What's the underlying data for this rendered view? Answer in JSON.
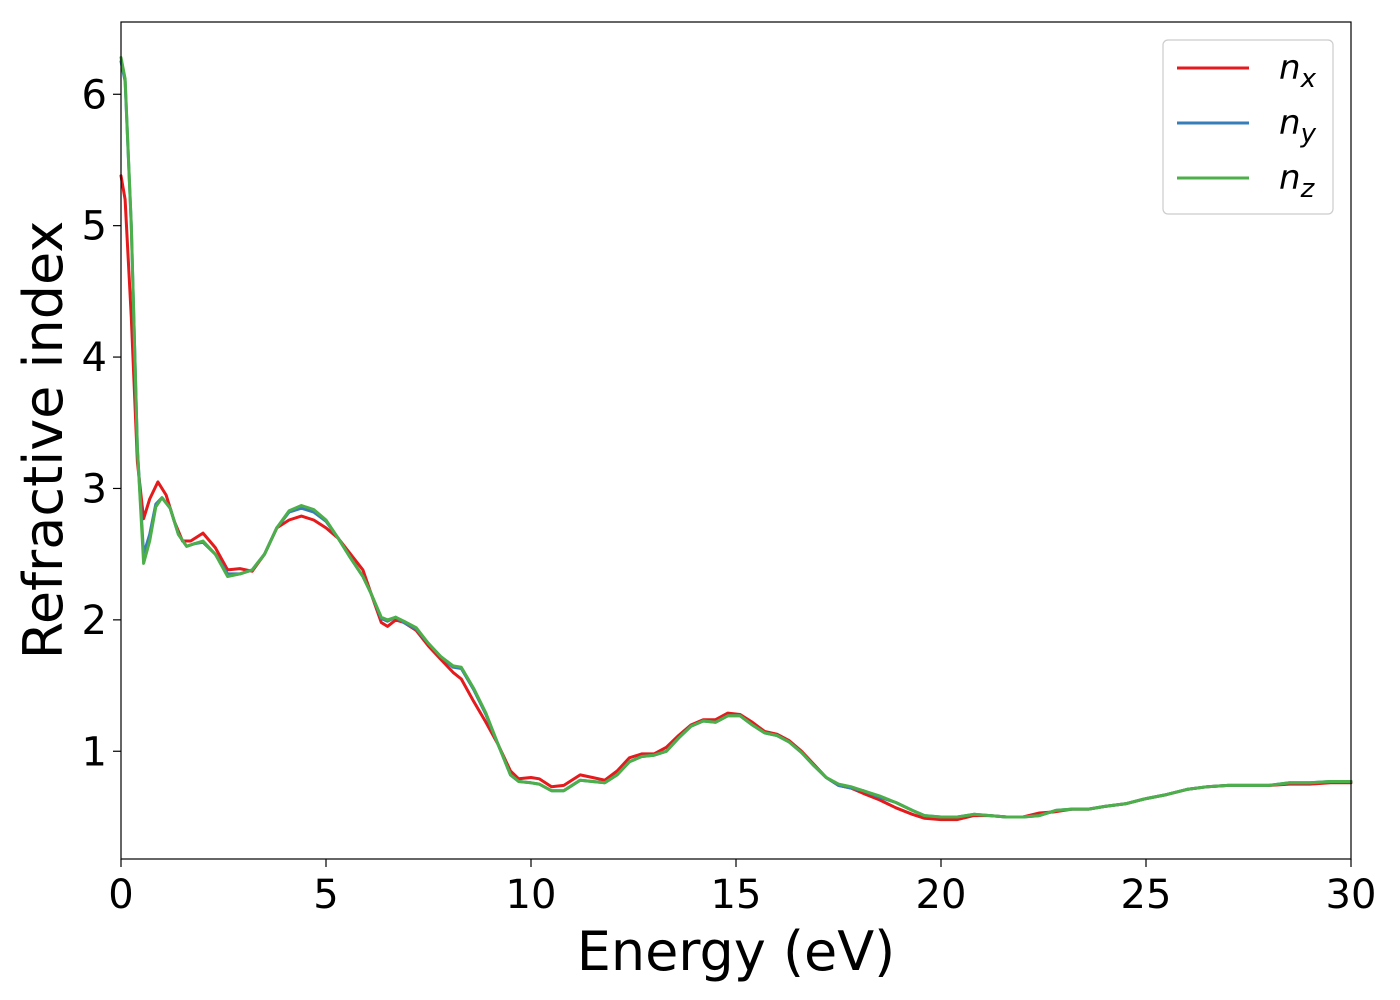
{
  "chart_data": {
    "type": "line",
    "title": "",
    "xlabel": "Energy (eV)",
    "ylabel": "Refractive index",
    "xlim": [
      0,
      30
    ],
    "ylim": [
      0.18,
      6.55
    ],
    "xticks": [
      0,
      5,
      10,
      15,
      20,
      25,
      30
    ],
    "yticks": [
      1,
      2,
      3,
      4,
      5,
      6
    ],
    "grid": false,
    "legend": "top-right",
    "series": [
      {
        "name": "n",
        "subscript": "x",
        "color": "#e41a1c",
        "points": [
          [
            0,
            5.38
          ],
          [
            0.1,
            5.2
          ],
          [
            0.25,
            4.3
          ],
          [
            0.4,
            3.2
          ],
          [
            0.55,
            2.77
          ],
          [
            0.7,
            2.92
          ],
          [
            0.9,
            3.05
          ],
          [
            1.1,
            2.95
          ],
          [
            1.3,
            2.75
          ],
          [
            1.5,
            2.6
          ],
          [
            1.7,
            2.6
          ],
          [
            2.0,
            2.66
          ],
          [
            2.3,
            2.55
          ],
          [
            2.6,
            2.38
          ],
          [
            2.9,
            2.39
          ],
          [
            3.2,
            2.37
          ],
          [
            3.5,
            2.5
          ],
          [
            3.8,
            2.7
          ],
          [
            4.1,
            2.76
          ],
          [
            4.4,
            2.79
          ],
          [
            4.7,
            2.76
          ],
          [
            5.0,
            2.7
          ],
          [
            5.3,
            2.62
          ],
          [
            5.6,
            2.5
          ],
          [
            5.9,
            2.38
          ],
          [
            6.1,
            2.2
          ],
          [
            6.35,
            1.98
          ],
          [
            6.5,
            1.95
          ],
          [
            6.7,
            2.0
          ],
          [
            6.9,
            1.98
          ],
          [
            7.2,
            1.92
          ],
          [
            7.5,
            1.8
          ],
          [
            7.8,
            1.7
          ],
          [
            8.1,
            1.6
          ],
          [
            8.3,
            1.55
          ],
          [
            8.6,
            1.38
          ],
          [
            8.9,
            1.22
          ],
          [
            9.2,
            1.05
          ],
          [
            9.5,
            0.85
          ],
          [
            9.7,
            0.79
          ],
          [
            10.0,
            0.8
          ],
          [
            10.2,
            0.79
          ],
          [
            10.5,
            0.73
          ],
          [
            10.8,
            0.74
          ],
          [
            11.2,
            0.82
          ],
          [
            11.5,
            0.8
          ],
          [
            11.8,
            0.78
          ],
          [
            12.1,
            0.85
          ],
          [
            12.4,
            0.95
          ],
          [
            12.7,
            0.98
          ],
          [
            13.0,
            0.98
          ],
          [
            13.3,
            1.03
          ],
          [
            13.6,
            1.12
          ],
          [
            13.9,
            1.2
          ],
          [
            14.2,
            1.24
          ],
          [
            14.5,
            1.24
          ],
          [
            14.8,
            1.29
          ],
          [
            15.1,
            1.28
          ],
          [
            15.4,
            1.22
          ],
          [
            15.7,
            1.15
          ],
          [
            16.0,
            1.13
          ],
          [
            16.3,
            1.08
          ],
          [
            16.6,
            1.0
          ],
          [
            16.9,
            0.9
          ],
          [
            17.2,
            0.8
          ],
          [
            17.5,
            0.74
          ],
          [
            17.8,
            0.72
          ],
          [
            18.1,
            0.68
          ],
          [
            18.5,
            0.63
          ],
          [
            18.9,
            0.57
          ],
          [
            19.3,
            0.52
          ],
          [
            19.6,
            0.49
          ],
          [
            20.0,
            0.48
          ],
          [
            20.4,
            0.48
          ],
          [
            20.8,
            0.51
          ],
          [
            21.2,
            0.51
          ],
          [
            21.6,
            0.5
          ],
          [
            22.0,
            0.5
          ],
          [
            22.4,
            0.53
          ],
          [
            22.8,
            0.54
          ],
          [
            23.2,
            0.56
          ],
          [
            23.6,
            0.56
          ],
          [
            24.0,
            0.58
          ],
          [
            24.5,
            0.6
          ],
          [
            25.0,
            0.64
          ],
          [
            25.5,
            0.67
          ],
          [
            26.0,
            0.71
          ],
          [
            26.5,
            0.73
          ],
          [
            27.0,
            0.74
          ],
          [
            27.5,
            0.74
          ],
          [
            28.0,
            0.74
          ],
          [
            28.5,
            0.75
          ],
          [
            29.0,
            0.75
          ],
          [
            29.5,
            0.76
          ],
          [
            30.0,
            0.76
          ]
        ]
      },
      {
        "name": "n",
        "subscript": "y",
        "color": "#377eb8",
        "points": [
          [
            0,
            6.25
          ],
          [
            0.1,
            6.1
          ],
          [
            0.25,
            5.0
          ],
          [
            0.4,
            3.3
          ],
          [
            0.55,
            2.5
          ],
          [
            0.7,
            2.65
          ],
          [
            0.85,
            2.88
          ],
          [
            1.0,
            2.93
          ],
          [
            1.2,
            2.85
          ],
          [
            1.4,
            2.65
          ],
          [
            1.6,
            2.56
          ],
          [
            1.8,
            2.58
          ],
          [
            2.0,
            2.59
          ],
          [
            2.3,
            2.5
          ],
          [
            2.6,
            2.35
          ],
          [
            2.9,
            2.35
          ],
          [
            3.2,
            2.38
          ],
          [
            3.5,
            2.5
          ],
          [
            3.8,
            2.7
          ],
          [
            4.1,
            2.82
          ],
          [
            4.4,
            2.85
          ],
          [
            4.7,
            2.82
          ],
          [
            5.0,
            2.75
          ],
          [
            5.3,
            2.62
          ],
          [
            5.6,
            2.47
          ],
          [
            5.9,
            2.33
          ],
          [
            6.1,
            2.2
          ],
          [
            6.35,
            2.01
          ],
          [
            6.5,
            1.99
          ],
          [
            6.7,
            2.02
          ],
          [
            6.9,
            1.98
          ],
          [
            7.2,
            1.93
          ],
          [
            7.5,
            1.82
          ],
          [
            7.8,
            1.72
          ],
          [
            8.1,
            1.64
          ],
          [
            8.3,
            1.63
          ],
          [
            8.6,
            1.47
          ],
          [
            8.9,
            1.28
          ],
          [
            9.2,
            1.05
          ],
          [
            9.5,
            0.82
          ],
          [
            9.7,
            0.77
          ],
          [
            10.0,
            0.76
          ],
          [
            10.2,
            0.75
          ],
          [
            10.5,
            0.7
          ],
          [
            10.8,
            0.7
          ],
          [
            11.2,
            0.78
          ],
          [
            11.5,
            0.77
          ],
          [
            11.8,
            0.76
          ],
          [
            12.1,
            0.82
          ],
          [
            12.4,
            0.92
          ],
          [
            12.7,
            0.96
          ],
          [
            13.0,
            0.97
          ],
          [
            13.3,
            1.0
          ],
          [
            13.6,
            1.1
          ],
          [
            13.9,
            1.19
          ],
          [
            14.2,
            1.23
          ],
          [
            14.5,
            1.22
          ],
          [
            14.8,
            1.27
          ],
          [
            15.1,
            1.27
          ],
          [
            15.4,
            1.2
          ],
          [
            15.7,
            1.14
          ],
          [
            16.0,
            1.12
          ],
          [
            16.3,
            1.07
          ],
          [
            16.6,
            0.99
          ],
          [
            16.9,
            0.89
          ],
          [
            17.2,
            0.8
          ],
          [
            17.5,
            0.74
          ],
          [
            17.8,
            0.72
          ],
          [
            18.1,
            0.7
          ],
          [
            18.5,
            0.65
          ],
          [
            18.9,
            0.61
          ],
          [
            19.3,
            0.55
          ],
          [
            19.6,
            0.51
          ],
          [
            20.0,
            0.5
          ],
          [
            20.4,
            0.5
          ],
          [
            20.8,
            0.52
          ],
          [
            21.2,
            0.51
          ],
          [
            21.6,
            0.5
          ],
          [
            22.0,
            0.5
          ],
          [
            22.4,
            0.51
          ],
          [
            22.8,
            0.55
          ],
          [
            23.2,
            0.56
          ],
          [
            23.6,
            0.56
          ],
          [
            24.0,
            0.58
          ],
          [
            24.5,
            0.6
          ],
          [
            25.0,
            0.64
          ],
          [
            25.5,
            0.67
          ],
          [
            26.0,
            0.71
          ],
          [
            26.5,
            0.73
          ],
          [
            27.0,
            0.74
          ],
          [
            27.5,
            0.74
          ],
          [
            28.0,
            0.74
          ],
          [
            28.5,
            0.76
          ],
          [
            29.0,
            0.76
          ],
          [
            29.5,
            0.77
          ],
          [
            30.0,
            0.77
          ]
        ]
      },
      {
        "name": "n",
        "subscript": "z",
        "color": "#4daf4a",
        "points": [
          [
            0,
            6.28
          ],
          [
            0.1,
            6.12
          ],
          [
            0.25,
            5.0
          ],
          [
            0.4,
            3.3
          ],
          [
            0.55,
            2.43
          ],
          [
            0.7,
            2.6
          ],
          [
            0.85,
            2.86
          ],
          [
            1.0,
            2.93
          ],
          [
            1.2,
            2.85
          ],
          [
            1.4,
            2.65
          ],
          [
            1.6,
            2.56
          ],
          [
            1.8,
            2.58
          ],
          [
            2.0,
            2.6
          ],
          [
            2.3,
            2.5
          ],
          [
            2.6,
            2.33
          ],
          [
            2.9,
            2.35
          ],
          [
            3.2,
            2.38
          ],
          [
            3.5,
            2.5
          ],
          [
            3.8,
            2.7
          ],
          [
            4.1,
            2.83
          ],
          [
            4.4,
            2.87
          ],
          [
            4.7,
            2.84
          ],
          [
            5.0,
            2.76
          ],
          [
            5.3,
            2.62
          ],
          [
            5.6,
            2.47
          ],
          [
            5.9,
            2.33
          ],
          [
            6.1,
            2.2
          ],
          [
            6.35,
            2.02
          ],
          [
            6.5,
            2.0
          ],
          [
            6.7,
            2.02
          ],
          [
            6.9,
            1.99
          ],
          [
            7.2,
            1.94
          ],
          [
            7.5,
            1.82
          ],
          [
            7.8,
            1.72
          ],
          [
            8.1,
            1.65
          ],
          [
            8.3,
            1.64
          ],
          [
            8.6,
            1.48
          ],
          [
            8.9,
            1.29
          ],
          [
            9.2,
            1.05
          ],
          [
            9.5,
            0.82
          ],
          [
            9.7,
            0.77
          ],
          [
            10.0,
            0.76
          ],
          [
            10.2,
            0.75
          ],
          [
            10.5,
            0.7
          ],
          [
            10.8,
            0.7
          ],
          [
            11.2,
            0.78
          ],
          [
            11.5,
            0.77
          ],
          [
            11.8,
            0.76
          ],
          [
            12.1,
            0.82
          ],
          [
            12.4,
            0.92
          ],
          [
            12.7,
            0.96
          ],
          [
            13.0,
            0.97
          ],
          [
            13.3,
            1.0
          ],
          [
            13.6,
            1.1
          ],
          [
            13.9,
            1.19
          ],
          [
            14.2,
            1.23
          ],
          [
            14.5,
            1.22
          ],
          [
            14.8,
            1.27
          ],
          [
            15.1,
            1.27
          ],
          [
            15.4,
            1.2
          ],
          [
            15.7,
            1.14
          ],
          [
            16.0,
            1.12
          ],
          [
            16.3,
            1.07
          ],
          [
            16.6,
            0.99
          ],
          [
            16.9,
            0.89
          ],
          [
            17.2,
            0.8
          ],
          [
            17.5,
            0.75
          ],
          [
            17.8,
            0.73
          ],
          [
            18.1,
            0.7
          ],
          [
            18.5,
            0.66
          ],
          [
            18.9,
            0.61
          ],
          [
            19.3,
            0.55
          ],
          [
            19.6,
            0.51
          ],
          [
            20.0,
            0.5
          ],
          [
            20.4,
            0.5
          ],
          [
            20.8,
            0.52
          ],
          [
            21.2,
            0.51
          ],
          [
            21.6,
            0.5
          ],
          [
            22.0,
            0.5
          ],
          [
            22.4,
            0.51
          ],
          [
            22.8,
            0.55
          ],
          [
            23.2,
            0.56
          ],
          [
            23.6,
            0.56
          ],
          [
            24.0,
            0.58
          ],
          [
            24.5,
            0.6
          ],
          [
            25.0,
            0.64
          ],
          [
            25.5,
            0.67
          ],
          [
            26.0,
            0.71
          ],
          [
            26.5,
            0.73
          ],
          [
            27.0,
            0.74
          ],
          [
            27.5,
            0.74
          ],
          [
            28.0,
            0.74
          ],
          [
            28.5,
            0.76
          ],
          [
            29.0,
            0.76
          ],
          [
            29.5,
            0.77
          ],
          [
            30.0,
            0.77
          ]
        ]
      }
    ]
  }
}
